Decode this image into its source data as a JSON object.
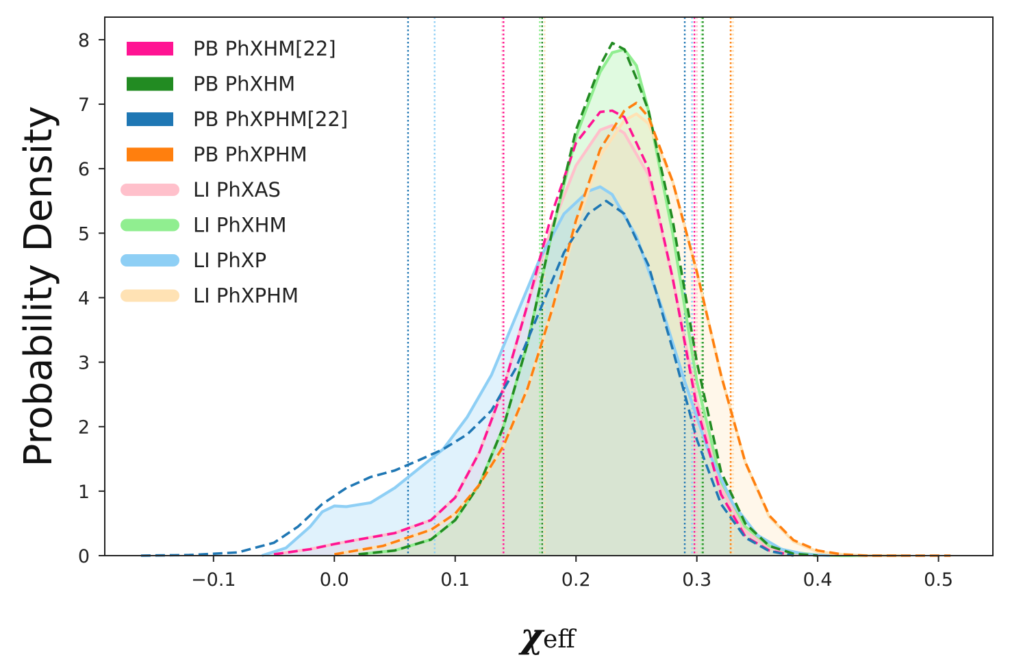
{
  "chart_data": {
    "type": "area",
    "title": "",
    "xlabel": "χ",
    "xlabel_subscript": "eff",
    "ylabel": "Probability Density",
    "xlim": [
      -0.19,
      0.545
    ],
    "ylim": [
      0,
      8.35
    ],
    "xticks": [
      -0.1,
      0.0,
      0.1,
      0.2,
      0.3,
      0.4,
      0.5
    ],
    "xtick_labels": [
      "−0.1",
      "0.0",
      "0.1",
      "0.2",
      "0.3",
      "0.4",
      "0.5"
    ],
    "yticks": [
      0,
      1,
      2,
      3,
      4,
      5,
      6,
      7,
      8
    ],
    "ytick_labels": [
      "0",
      "1",
      "2",
      "3",
      "4",
      "5",
      "6",
      "7",
      "8"
    ],
    "grid": false,
    "legend_position": "top-left",
    "series": [
      {
        "name": "LI PhXAS",
        "style": "solid",
        "color": "#ffc0cb",
        "fill": "#ffc0cb",
        "x": [
          -0.05,
          -0.02,
          0.0,
          0.02,
          0.05,
          0.08,
          0.1,
          0.12,
          0.14,
          0.16,
          0.18,
          0.2,
          0.22,
          0.23,
          0.24,
          0.26,
          0.28,
          0.3,
          0.32,
          0.34,
          0.36,
          0.38,
          0.4,
          0.42
        ],
        "y": [
          0.02,
          0.1,
          0.18,
          0.25,
          0.35,
          0.55,
          0.9,
          1.6,
          2.6,
          3.9,
          5.1,
          6.05,
          6.6,
          6.67,
          6.55,
          5.9,
          4.3,
          2.4,
          1.05,
          0.38,
          0.12,
          0.04,
          0.01,
          0.0
        ],
        "ci": [
          0.139,
          0.3
        ]
      },
      {
        "name": "LI PhXHM",
        "style": "solid",
        "color": "#90ee90",
        "fill": "#90ee90",
        "x": [
          0.02,
          0.05,
          0.08,
          0.1,
          0.12,
          0.14,
          0.16,
          0.18,
          0.2,
          0.22,
          0.23,
          0.24,
          0.25,
          0.26,
          0.28,
          0.3,
          0.32,
          0.34,
          0.36,
          0.38,
          0.4,
          0.42,
          0.44
        ],
        "y": [
          0.02,
          0.08,
          0.25,
          0.55,
          1.1,
          2.0,
          3.3,
          5.0,
          6.5,
          7.5,
          7.8,
          7.85,
          7.6,
          6.9,
          5.0,
          2.7,
          1.15,
          0.45,
          0.15,
          0.05,
          0.01,
          0.0,
          0.0
        ],
        "ci": [
          0.17,
          0.304
        ]
      },
      {
        "name": "LI PhXP",
        "style": "solid",
        "color": "#8ecff5",
        "fill": "#8ecff5",
        "x": [
          -0.06,
          -0.04,
          -0.02,
          -0.01,
          0.0,
          0.01,
          0.03,
          0.05,
          0.07,
          0.09,
          0.11,
          0.13,
          0.15,
          0.17,
          0.19,
          0.21,
          0.22,
          0.23,
          0.25,
          0.27,
          0.29,
          0.31,
          0.33,
          0.35,
          0.37,
          0.39,
          0.41
        ],
        "y": [
          0.0,
          0.12,
          0.45,
          0.68,
          0.77,
          0.76,
          0.82,
          1.05,
          1.35,
          1.65,
          2.15,
          2.8,
          3.7,
          4.6,
          5.3,
          5.65,
          5.72,
          5.6,
          4.95,
          3.9,
          2.7,
          1.6,
          0.8,
          0.32,
          0.1,
          0.02,
          0.0
        ],
        "ci": [
          0.083,
          0.296
        ]
      },
      {
        "name": "LI PhXPHM",
        "style": "solid",
        "color": "#ffe2b4",
        "fill": "#ffe2b4",
        "x": [
          0.0,
          0.04,
          0.08,
          0.1,
          0.12,
          0.14,
          0.16,
          0.18,
          0.2,
          0.22,
          0.24,
          0.25,
          0.26,
          0.28,
          0.3,
          0.32,
          0.34,
          0.36,
          0.38,
          0.4,
          0.42,
          0.44,
          0.47
        ],
        "y": [
          0.02,
          0.15,
          0.4,
          0.65,
          1.1,
          1.7,
          2.6,
          3.8,
          5.1,
          6.2,
          6.75,
          6.85,
          6.7,
          5.8,
          4.4,
          2.8,
          1.45,
          0.6,
          0.22,
          0.06,
          0.02,
          0.0,
          0.0
        ],
        "ci": [
          0.174,
          0.33
        ]
      },
      {
        "name": "PB PhXHM[22]",
        "style": "dashed",
        "color": "#ff1493",
        "x": [
          -0.05,
          -0.02,
          0.0,
          0.02,
          0.05,
          0.08,
          0.1,
          0.12,
          0.14,
          0.16,
          0.18,
          0.2,
          0.22,
          0.23,
          0.24,
          0.26,
          0.28,
          0.3,
          0.32,
          0.34,
          0.36,
          0.38
        ],
        "y": [
          0.02,
          0.1,
          0.18,
          0.25,
          0.35,
          0.55,
          0.9,
          1.6,
          2.6,
          3.9,
          5.3,
          6.4,
          6.88,
          6.9,
          6.8,
          6.0,
          4.3,
          2.3,
          0.95,
          0.3,
          0.08,
          0.0
        ],
        "ci": [
          0.14,
          0.298
        ]
      },
      {
        "name": "PB PhXHM",
        "style": "dashed",
        "color": "#228b22",
        "x": [
          0.02,
          0.05,
          0.08,
          0.1,
          0.12,
          0.14,
          0.16,
          0.18,
          0.2,
          0.22,
          0.23,
          0.24,
          0.25,
          0.26,
          0.28,
          0.3,
          0.32,
          0.34,
          0.36,
          0.38,
          0.4
        ],
        "y": [
          0.02,
          0.08,
          0.25,
          0.55,
          1.1,
          2.0,
          3.3,
          5.0,
          6.6,
          7.6,
          7.95,
          7.85,
          7.4,
          6.9,
          5.2,
          3.0,
          1.3,
          0.5,
          0.15,
          0.03,
          0.0
        ],
        "ci": [
          0.172,
          0.305
        ]
      },
      {
        "name": "PB PhXPHM[22]",
        "style": "dashed",
        "color": "#1f77b4",
        "x": [
          -0.16,
          -0.12,
          -0.08,
          -0.05,
          -0.03,
          -0.01,
          0.01,
          0.03,
          0.05,
          0.07,
          0.09,
          0.11,
          0.13,
          0.15,
          0.17,
          0.19,
          0.21,
          0.225,
          0.24,
          0.26,
          0.28,
          0.3,
          0.32,
          0.34,
          0.36,
          0.38
        ],
        "y": [
          0.0,
          0.01,
          0.05,
          0.2,
          0.45,
          0.8,
          1.05,
          1.22,
          1.32,
          1.48,
          1.65,
          1.88,
          2.25,
          2.9,
          3.8,
          4.7,
          5.3,
          5.5,
          5.3,
          4.5,
          3.2,
          1.8,
          0.8,
          0.28,
          0.07,
          0.0
        ],
        "ci": [
          0.061,
          0.29
        ]
      },
      {
        "name": "PB PhXPHM",
        "style": "dashed",
        "color": "#ff7f0e",
        "x": [
          0.0,
          0.04,
          0.08,
          0.1,
          0.12,
          0.14,
          0.16,
          0.18,
          0.2,
          0.22,
          0.24,
          0.25,
          0.26,
          0.28,
          0.3,
          0.32,
          0.34,
          0.36,
          0.38,
          0.4,
          0.42,
          0.44,
          0.47,
          0.51
        ],
        "y": [
          0.02,
          0.15,
          0.4,
          0.65,
          1.1,
          1.7,
          2.6,
          3.8,
          5.2,
          6.3,
          6.9,
          7.02,
          6.8,
          5.8,
          4.4,
          2.8,
          1.45,
          0.62,
          0.24,
          0.08,
          0.02,
          0.0,
          0.0,
          0.0
        ],
        "ci": [
          0.328,
          0.328
        ]
      }
    ],
    "legend": [
      {
        "label": "PB PhXHM[22]",
        "kind": "patch",
        "color": "#ff1493"
      },
      {
        "label": "PB PhXHM",
        "kind": "patch",
        "color": "#228b22"
      },
      {
        "label": "PB PhXPHM[22]",
        "kind": "patch",
        "color": "#1f77b4"
      },
      {
        "label": "PB PhXPHM",
        "kind": "patch",
        "color": "#ff7f0e"
      },
      {
        "label": "LI PhXAS",
        "kind": "line",
        "color": "#ffc0cb"
      },
      {
        "label": "LI PhXHM",
        "kind": "line",
        "color": "#90ee90"
      },
      {
        "label": "LI PhXP",
        "kind": "line",
        "color": "#8ecff5"
      },
      {
        "label": "LI PhXPHM",
        "kind": "line",
        "color": "#ffe2b4"
      }
    ]
  }
}
